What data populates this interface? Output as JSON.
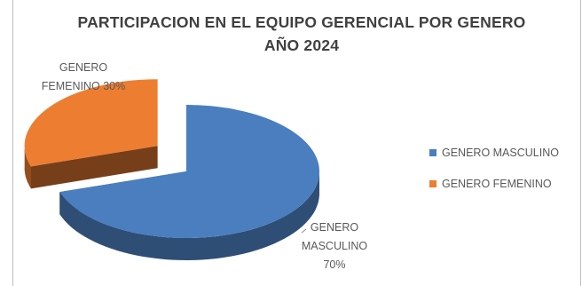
{
  "chart_data": {
    "type": "pie",
    "style": "3d-exploded",
    "title": "PARTICIPACION  EN EL EQUIPO GERENCIAL POR GENERO",
    "subtitle": "AÑO 2024",
    "slices": [
      {
        "name": "GENERO MASCULINO",
        "value": 70,
        "color": "#4a7ebf",
        "label_line1": "GENERO",
        "label_line2": "MASCULINO",
        "label_line3": "70%"
      },
      {
        "name": "GENERO FEMENINO",
        "value": 30,
        "color": "#ed7d31",
        "label_line1": "GENERO",
        "label_line2": "FEMENINO 30%"
      }
    ],
    "legend": {
      "position": "right",
      "items": [
        "GENERO MASCULINO",
        "GENERO FEMENINO"
      ]
    }
  }
}
